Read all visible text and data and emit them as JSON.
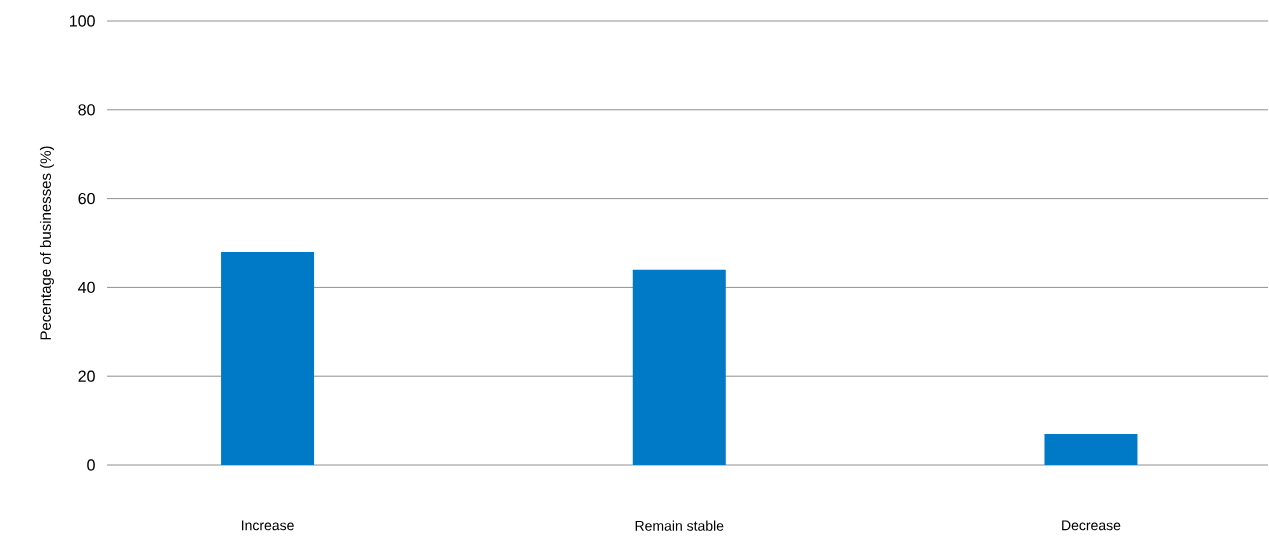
{
  "chart_data": {
    "type": "bar",
    "ylabel": "Pecentage of businesses (%)",
    "categories": [
      "Increase",
      "Remain stable",
      "Decrease"
    ],
    "values": [
      48,
      44,
      7
    ],
    "color": "#0079c6",
    "ylim": [
      0,
      100
    ],
    "yticks": [
      0,
      20,
      40,
      60,
      80,
      100
    ],
    "grid": "y"
  }
}
